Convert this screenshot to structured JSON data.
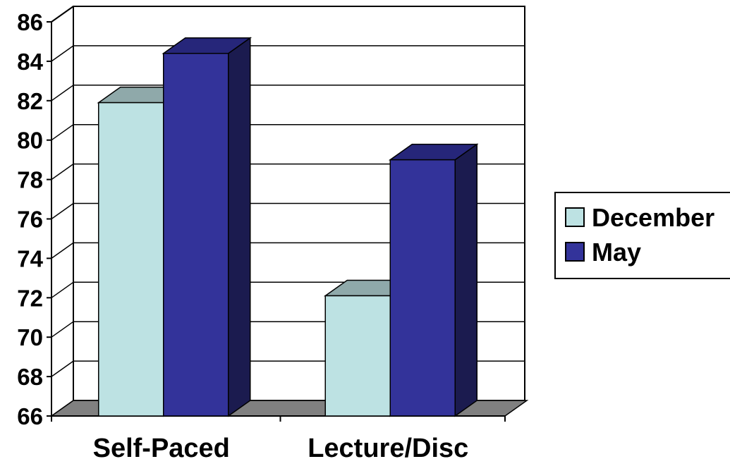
{
  "chart_data": {
    "type": "bar",
    "categories": [
      "Self-Paced",
      "Lecture/Disc"
    ],
    "series": [
      {
        "name": "December",
        "values": [
          81.9,
          72.1
        ]
      },
      {
        "name": "May",
        "values": [
          84.4,
          79.0
        ]
      }
    ],
    "ylim": [
      66,
      86
    ],
    "yticks": [
      "66",
      "68",
      "70",
      "72",
      "74",
      "76",
      "78",
      "80",
      "82",
      "84",
      "86"
    ],
    "grid": true,
    "legend_position": "right",
    "colors": {
      "December": {
        "front": "#bde2e3",
        "top": "#8fa9aa",
        "side": "#7f9899"
      },
      "May": {
        "front": "#33339a",
        "top": "#26267a",
        "side": "#1b1b4f"
      },
      "floor": "#808080",
      "grid": "#000000"
    }
  }
}
